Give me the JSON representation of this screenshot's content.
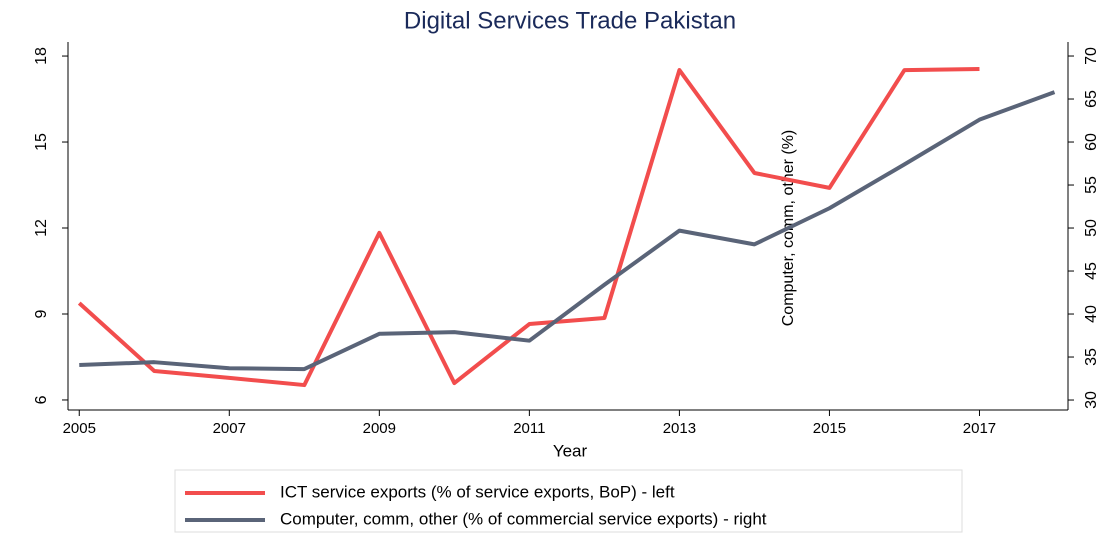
{
  "chart_data": {
    "type": "line",
    "title": "Digital Services Trade Pakistan",
    "x_label": "Year",
    "annotation": "Computer, comm, other (%)",
    "x": [
      2005,
      2006,
      2007,
      2008,
      2009,
      2010,
      2011,
      2012,
      2013,
      2014,
      2015,
      2016,
      2017,
      2018
    ],
    "series": [
      {
        "name": "ICT service exports (% of service exports, BoP) - left",
        "color": "#f24d4d",
        "axis": "y",
        "values": [
          9.38,
          7.01,
          6.77,
          6.52,
          11.83,
          6.59,
          8.65,
          8.86,
          17.51,
          13.92,
          13.4,
          17.51,
          17.55,
          null
        ]
      },
      {
        "name": "Computer, comm, other (% of commercial service exports) - right",
        "color": "#5a6478",
        "axis": "y2",
        "values": [
          34.07,
          34.4,
          33.7,
          33.6,
          37.7,
          37.9,
          36.9,
          43.4,
          49.7,
          48.1,
          52.3,
          57.4,
          62.6,
          65.8
        ]
      }
    ],
    "xlim": [
      2004.85,
      2018.18
    ],
    "xticks": [
      2005,
      2007,
      2009,
      2011,
      2013,
      2015,
      2017
    ],
    "ylim": [
      5.65,
      18.49
    ],
    "yticks": [
      6,
      9,
      12,
      15,
      18
    ],
    "y2lim": [
      28.84,
      71.63
    ],
    "y2ticks": [
      30,
      35,
      40,
      45,
      50,
      55,
      60,
      65,
      70
    ]
  }
}
